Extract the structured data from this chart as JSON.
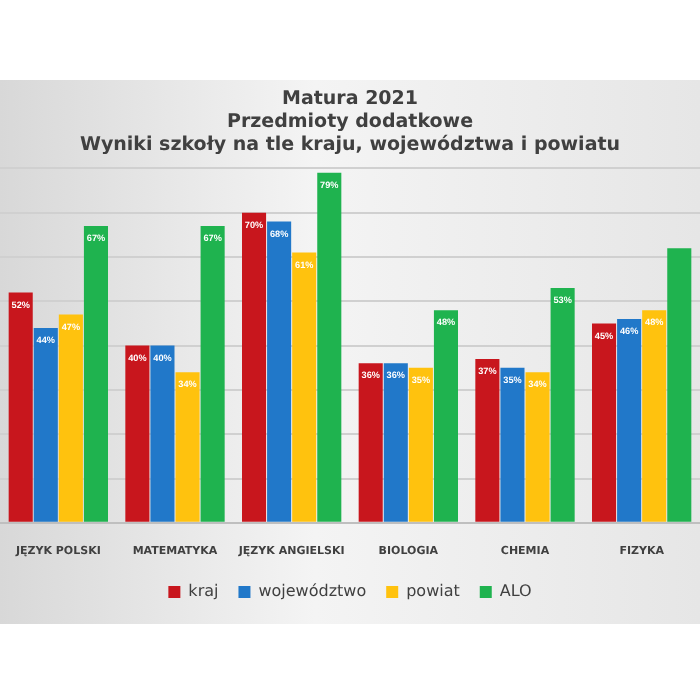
{
  "chart_data": {
    "type": "bar",
    "title": [
      "Matura 2021",
      "Przedmioty dodatkowe",
      "Wyniki szkoły na tle kraju, województwa i powiatu"
    ],
    "categories": [
      "JĘZYK POLSKI",
      "MATEMATYKA",
      "JĘZYK ANGIELSKI",
      "BIOLOGIA",
      "CHEMIA",
      "FIZYKA"
    ],
    "series": [
      {
        "name": "kraj",
        "color": "#c8161d",
        "values": [
          52,
          40,
          70,
          36,
          37,
          45
        ],
        "value_labels": [
          "52%",
          "40%",
          "70%",
          "36%",
          "37%",
          "45%"
        ]
      },
      {
        "name": "województwo",
        "color": "#2178c9",
        "values": [
          44,
          40,
          68,
          36,
          35,
          46
        ],
        "value_labels": [
          "44%",
          "40%",
          "68%",
          "36%",
          "35%",
          "46%"
        ]
      },
      {
        "name": "powiat",
        "color": "#ffc20e",
        "values": [
          47,
          34,
          61,
          35,
          34,
          48
        ],
        "value_labels": [
          "47%",
          "34%",
          "61%",
          "35%",
          "34%",
          "48%"
        ]
      },
      {
        "name": "ALO",
        "color": "#1fb34f",
        "values": [
          67,
          67,
          79,
          48,
          53,
          62
        ],
        "value_labels": [
          "67%",
          "67%",
          "79%",
          "48%",
          "53%",
          null
        ]
      }
    ],
    "grid": "y",
    "legend": "bottom",
    "tick_labels": "x"
  }
}
